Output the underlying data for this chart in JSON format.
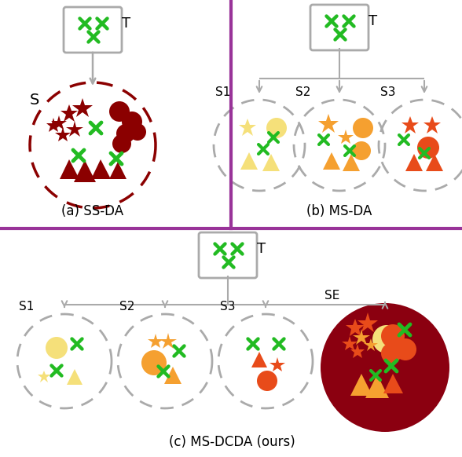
{
  "panel_divider_color": "#993399",
  "border_color": "#aaaaaa",
  "green_x_color": "#22BB22",
  "dark_red_color": "#8B0000",
  "yellow_color": "#F5E07A",
  "orange_color": "#F5A030",
  "red_orange_color": "#E84B1A",
  "dark_bg_color": "#8B0010",
  "title_a": "(a) SS-DA",
  "title_b": "(b) MS-DA",
  "title_c": "(c) MS-DCDA (ours)"
}
